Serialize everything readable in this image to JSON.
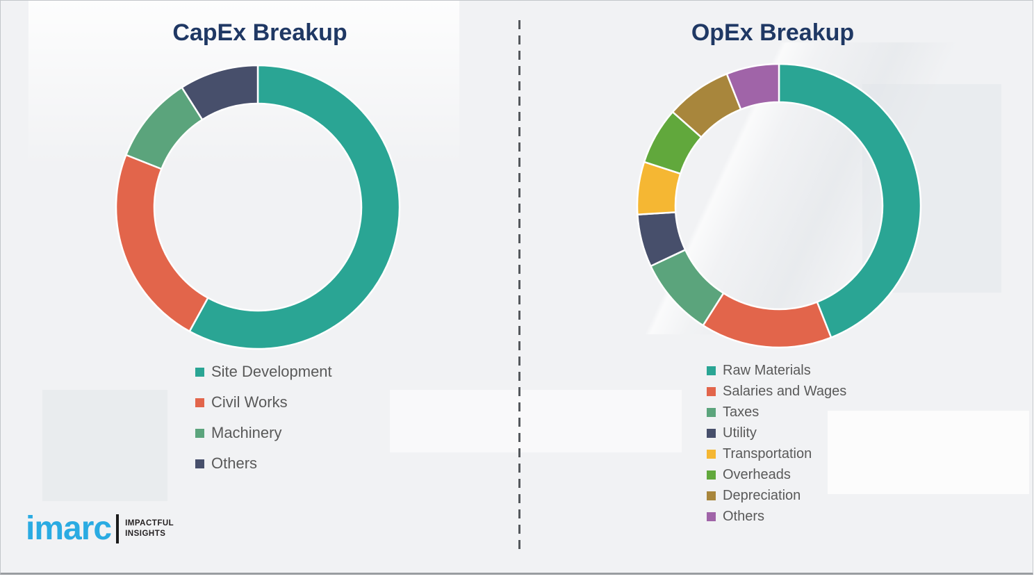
{
  "left_panel": {
    "title": "CapEx Breakup"
  },
  "right_panel": {
    "title": "OpEx Breakup"
  },
  "chart_data": [
    {
      "type": "pie",
      "subtype": "donut",
      "title": "CapEx Breakup",
      "labels": [
        "Site Development",
        "Civil Works",
        "Machinery",
        "Others"
      ],
      "values": [
        58,
        23,
        10,
        9
      ],
      "colors": [
        "#2aa594",
        "#e2654b",
        "#5ba47c",
        "#474f6b"
      ],
      "inner_radius_ratio": 0.73,
      "start_angle_deg": 0,
      "direction": "clockwise",
      "legend_position": "below",
      "data_labels": false
    },
    {
      "type": "pie",
      "subtype": "donut",
      "title": "OpEx Breakup",
      "labels": [
        "Raw Materials",
        "Salaries and Wages",
        "Taxes",
        "Utility",
        "Transportation",
        "Overheads",
        "Depreciation",
        "Others"
      ],
      "values": [
        44,
        15,
        9,
        6,
        6,
        6.5,
        7.5,
        6
      ],
      "colors": [
        "#2aa594",
        "#e2654b",
        "#5ba47c",
        "#474f6b",
        "#f5b733",
        "#61a83c",
        "#a8863c",
        "#a064a8"
      ],
      "inner_radius_ratio": 0.73,
      "start_angle_deg": 0,
      "direction": "clockwise",
      "legend_position": "below",
      "data_labels": false
    }
  ],
  "logo": {
    "brand": "imarc",
    "tagline_line1": "IMPACTFUL",
    "tagline_line2": "INSIGHTS",
    "brand_color": "#2aabe2"
  },
  "style": {
    "title_color": "#1f3864",
    "legend_text_color": "#595959",
    "background_color": "#f1f2f4",
    "slice_gap_color": "#ffffff"
  }
}
